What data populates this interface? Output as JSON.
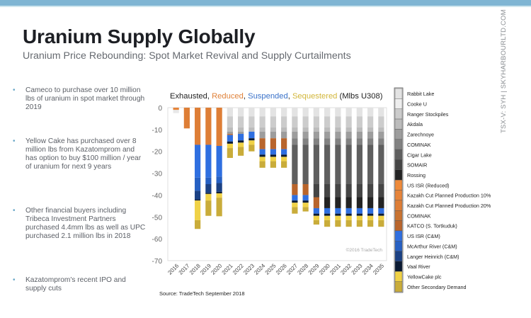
{
  "header": {
    "title": "Uranium Supply Globally",
    "subtitle": "Uranium Price Rebounding: Spot Market Revival and Supply Curtailments"
  },
  "sidebar_text": "TSX-V: SYH  |  SKYHARBOURLTD.COM",
  "bullets": [
    {
      "text": "Cameco to purchase over 10 million lbs of uranium in spot market through 2019"
    },
    {
      "text": "Yellow Cake has purchased over 8 million lbs from Kazatomprom and has option to buy $100 million / year of uranium for next 9 years"
    },
    {
      "text": "Other financial buyers including Tribeca Investment Partners purchased 4.4mm lbs as well as UPC purchased 2.1 million lbs in 2018"
    },
    {
      "text": "Kazatomprom's recent IPO and supply cuts"
    }
  ],
  "source": "Source: TradeTech September 2018",
  "chart_data": {
    "type": "bar",
    "stacked": true,
    "title_parts": [
      {
        "text": "Exhausted",
        "color": "#222222"
      },
      {
        "text": ", ",
        "color": "#222222"
      },
      {
        "text": "Reduced",
        "color": "#e0823a"
      },
      {
        "text": ", ",
        "color": "#222222"
      },
      {
        "text": "Suspended",
        "color": "#3a72c9"
      },
      {
        "text": ", ",
        "color": "#222222"
      },
      {
        "text": "Sequestered",
        "color": "#d2b63a"
      },
      {
        "text": " (Mlbs U308)",
        "color": "#222222"
      }
    ],
    "xlabel": "",
    "ylabel": "",
    "ylim": [
      -70,
      0
    ],
    "yticks": [
      0,
      -10,
      -20,
      -30,
      -40,
      -50,
      -60,
      -70
    ],
    "watermark": "©2016 TradeTech",
    "legend_position": "right",
    "categories": [
      "2016",
      "2017",
      "2018",
      "2019",
      "2020",
      "2021",
      "2022",
      "2023",
      "2024",
      "2025",
      "2026",
      "2027",
      "2028",
      "2029",
      "2030",
      "2031",
      "2032",
      "2033",
      "2034",
      "2035"
    ],
    "series": [
      {
        "name": "Rabbit Lake",
        "color": "#e3e3e3",
        "values": [
          0,
          0,
          0,
          0,
          0,
          4,
          4,
          4,
          4,
          4,
          4,
          4,
          4,
          4,
          4,
          4,
          4,
          4,
          4,
          4
        ]
      },
      {
        "name": "Cooke U",
        "color": "#eeeeee",
        "values": [
          0,
          0,
          0,
          0,
          0,
          0,
          0,
          0,
          0,
          0,
          0,
          0,
          0,
          0,
          0,
          0,
          0,
          0,
          0,
          0
        ]
      },
      {
        "name": "Ranger Stockpiles",
        "color": "#cccccc",
        "values": [
          0,
          0,
          0,
          0,
          0,
          5,
          5,
          5,
          5,
          5,
          5,
          5,
          5,
          5,
          5,
          5,
          5,
          5,
          5,
          5
        ]
      },
      {
        "name": "Akdala",
        "color": "#bcbcbc",
        "values": [
          0,
          0,
          0,
          0,
          0,
          2,
          2,
          2,
          2,
          2,
          2,
          2,
          2,
          2,
          2,
          2,
          2,
          2,
          2,
          2
        ]
      },
      {
        "name": "Zarechnoye",
        "color": "#9d9d9d",
        "values": [
          0,
          0,
          0,
          0,
          0,
          1,
          1,
          0,
          3,
          3,
          3,
          3,
          3,
          3,
          3,
          3,
          3,
          3,
          3,
          3
        ]
      },
      {
        "name": "COMINAK",
        "color": "#828282",
        "values": [
          0,
          0,
          0,
          0,
          0,
          0,
          0,
          0,
          0,
          0,
          0,
          3,
          3,
          3,
          3,
          3,
          3,
          3,
          3,
          3
        ]
      },
      {
        "name": "Cigar Lake",
        "color": "#5f5f5f",
        "values": [
          0,
          0,
          0,
          0,
          0,
          0,
          0,
          0,
          0,
          0,
          0,
          18,
          18,
          18,
          18,
          18,
          18,
          18,
          18,
          18
        ]
      },
      {
        "name": "SOMAIR",
        "color": "#454545",
        "values": [
          0,
          0,
          0,
          0,
          0,
          0,
          0,
          0,
          0,
          0,
          0,
          0,
          0,
          6,
          6,
          6,
          6,
          6,
          6,
          6
        ]
      },
      {
        "name": "Rossing",
        "color": "#232323",
        "values": [
          0,
          0,
          0,
          0,
          0,
          0,
          0,
          0,
          0,
          0,
          0,
          0,
          0,
          0,
          5,
          5,
          5,
          5,
          5,
          5
        ]
      },
      {
        "name": "US ISR (Reduced)",
        "color": "#ee8a3a",
        "values": [
          0,
          0,
          0,
          0,
          0,
          0,
          0,
          0,
          0,
          0,
          0,
          0,
          0,
          0,
          0,
          0,
          0,
          0,
          0,
          0
        ]
      },
      {
        "name": "Kazakh Cut Planned Production 10%",
        "color": "#e6843a",
        "values": [
          1,
          0,
          0,
          0,
          0,
          0,
          0,
          0,
          0,
          0,
          0,
          0,
          0,
          0,
          0,
          0,
          0,
          0,
          0,
          0
        ]
      },
      {
        "name": "Kazakh Cut Planned Production 20%",
        "color": "#de7e36",
        "values": [
          0,
          9.5,
          17,
          17,
          17.5,
          0,
          0,
          0,
          0,
          0,
          0,
          0,
          0,
          0,
          0,
          0,
          0,
          0,
          0,
          0
        ]
      },
      {
        "name": "COMINAK",
        "color": "#c97330",
        "values": [
          0,
          0,
          0,
          0,
          0,
          0.5,
          0,
          0,
          0,
          0,
          0,
          0,
          0,
          0,
          0,
          0,
          0,
          0,
          0,
          0
        ]
      },
      {
        "name": "KATCO (S. Tortkuduk)",
        "color": "#b9652c",
        "values": [
          0,
          0,
          0,
          0,
          0,
          0,
          0,
          0,
          5,
          5,
          5,
          5,
          5,
          5,
          0,
          0,
          0,
          0,
          0,
          0
        ]
      },
      {
        "name": "US ISR (C&M)",
        "color": "#2f6fe0",
        "values": [
          0,
          0,
          15,
          15,
          14,
          3,
          3,
          3,
          2.5,
          2.5,
          2.5,
          2.5,
          2.5,
          2.5,
          2.5,
          2.5,
          2.5,
          2.5,
          2.5,
          2.5
        ]
      },
      {
        "name": "McArthur River (C&M)",
        "color": "#2660c3",
        "values": [
          0,
          0,
          6,
          3,
          3,
          0,
          0,
          0,
          0,
          0,
          0,
          0,
          0,
          0,
          0,
          0,
          0,
          0,
          0,
          0
        ]
      },
      {
        "name": "Langer Heinrich (C&M)",
        "color": "#1b4184",
        "values": [
          0,
          0,
          4,
          4,
          4,
          0,
          0,
          0,
          0,
          0,
          0,
          0,
          0,
          0,
          0,
          0,
          0,
          0,
          0,
          0
        ]
      },
      {
        "name": "Vaal River",
        "color": "#0b1a33",
        "values": [
          0,
          0,
          0.5,
          0.5,
          0.7,
          1,
          1,
          1,
          1,
          1,
          1,
          1,
          1,
          1,
          1,
          1,
          1,
          1,
          1,
          1
        ]
      },
      {
        "name": "YellowCake plc",
        "color": "#f0d247",
        "values": [
          0,
          0,
          9,
          3,
          2,
          2,
          2,
          2,
          2,
          2,
          2,
          2,
          2,
          2,
          2,
          2,
          2,
          2,
          2,
          2
        ]
      },
      {
        "name": "Other Secondary Demand",
        "color": "#c9ac3a",
        "values": [
          0,
          0,
          4,
          7,
          8.5,
          4.5,
          4,
          3,
          3,
          3,
          3,
          3,
          2,
          2,
          3,
          3,
          3,
          3,
          3,
          3
        ]
      }
    ]
  }
}
